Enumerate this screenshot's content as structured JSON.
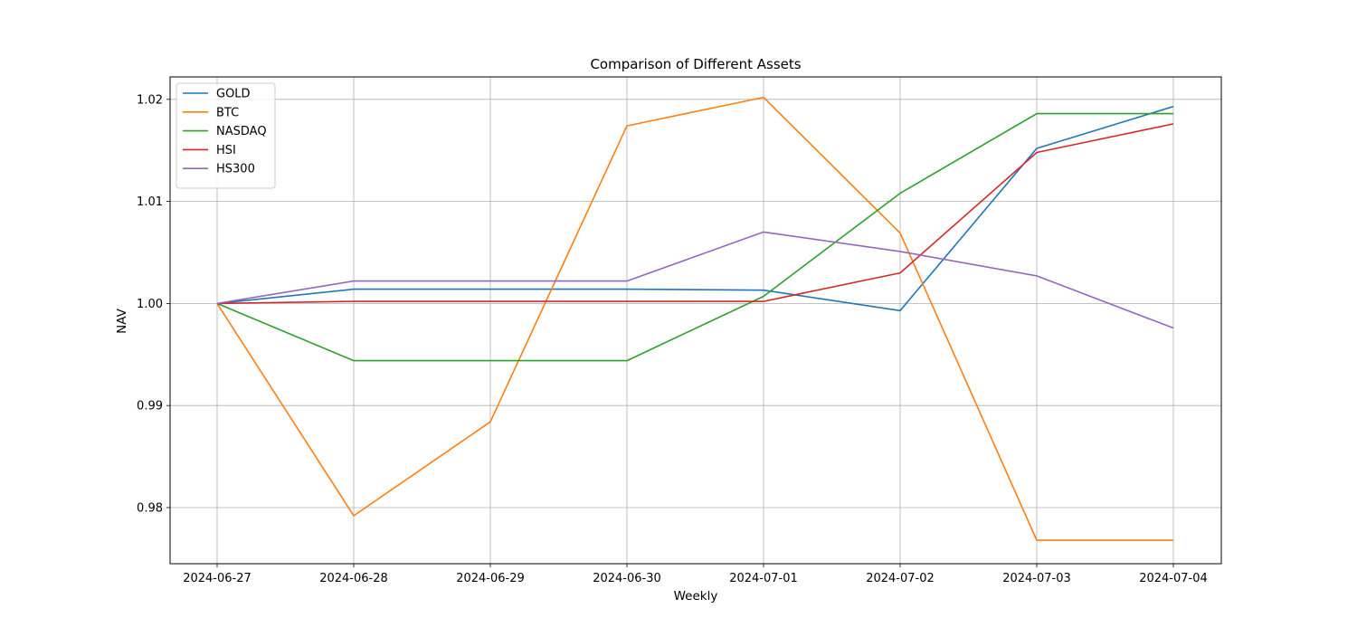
{
  "chart_data": {
    "type": "line",
    "title": "Comparison of Different Assets",
    "xlabel": "Weekly",
    "ylabel": "NAV",
    "x": [
      "2024-06-27",
      "2024-06-28",
      "2024-06-29",
      "2024-06-30",
      "2024-07-01",
      "2024-07-02",
      "2024-07-03",
      "2024-07-04"
    ],
    "ylim": [
      0.9745,
      1.0222
    ],
    "yticks": [
      "0.98",
      "0.99",
      "1.00",
      "1.01",
      "1.02"
    ],
    "ytick_values": [
      0.98,
      0.99,
      1.0,
      1.01,
      1.02
    ],
    "grid": true,
    "legend_position": "top-left",
    "series": [
      {
        "name": "GOLD",
        "color": "#1f77b4",
        "values": [
          1.0,
          1.0014,
          1.0014,
          1.0014,
          1.0013,
          0.9993,
          1.0152,
          1.0193
        ]
      },
      {
        "name": "BTC",
        "color": "#ff7f0e",
        "values": [
          1.0,
          0.9792,
          0.9884,
          1.0174,
          1.0202,
          1.0069,
          0.9768,
          0.9768
        ]
      },
      {
        "name": "NASDAQ",
        "color": "#2ca02c",
        "values": [
          1.0,
          0.9944,
          0.9944,
          0.9944,
          1.0007,
          1.0108,
          1.0186,
          1.0186
        ]
      },
      {
        "name": "HSI",
        "color": "#d62728",
        "values": [
          1.0,
          1.0002,
          1.0002,
          1.0002,
          1.0002,
          1.003,
          1.0148,
          1.0176
        ]
      },
      {
        "name": "HS300",
        "color": "#9467bd",
        "values": [
          1.0,
          1.0022,
          1.0022,
          1.0022,
          1.007,
          1.0051,
          1.0027,
          0.9976
        ]
      }
    ]
  }
}
